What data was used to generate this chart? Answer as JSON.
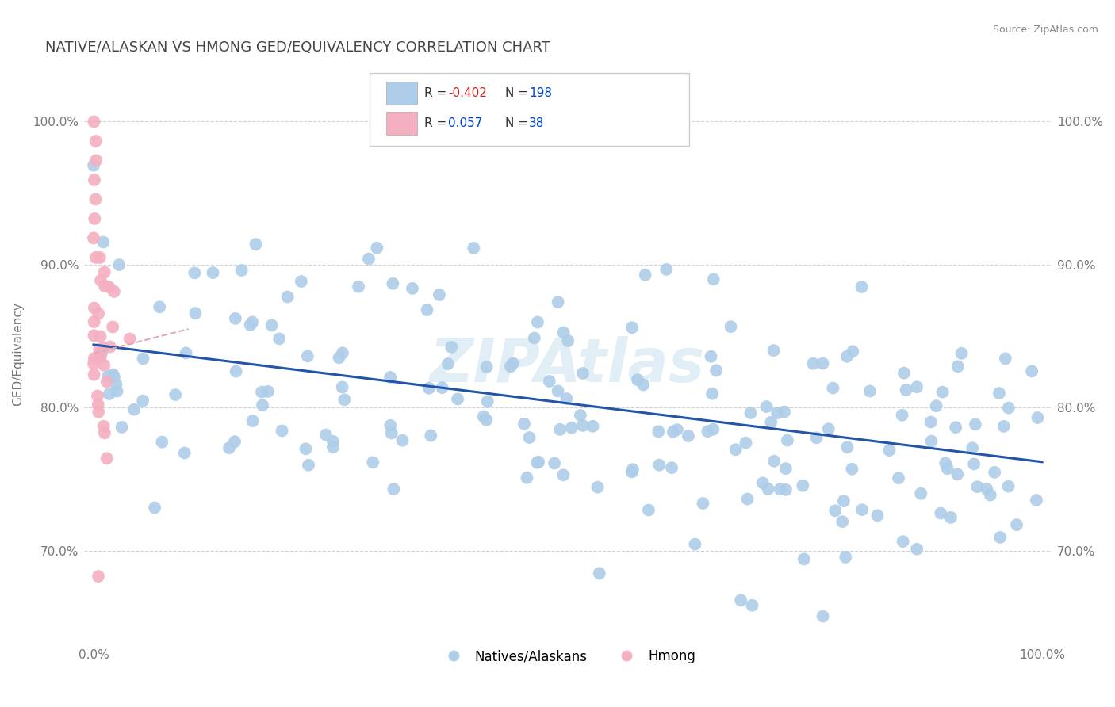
{
  "title": "NATIVE/ALASKAN VS HMONG GED/EQUIVALENCY CORRELATION CHART",
  "source": "Source: ZipAtlas.com",
  "ylabel": "GED/Equivalency",
  "yticks": [
    0.7,
    0.8,
    0.9,
    1.0
  ],
  "ytick_labels": [
    "70.0%",
    "80.0%",
    "90.0%",
    "100.0%"
  ],
  "xlim": [
    -0.01,
    1.01
  ],
  "ylim": [
    0.635,
    1.04
  ],
  "blue_color": "#aecde8",
  "pink_color": "#f4afc0",
  "blue_line_color": "#2255aa",
  "pink_line_color": "#ddaabb",
  "watermark": "ZIPAtlas",
  "background_color": "#ffffff",
  "grid_color": "#cccccc",
  "blue_trend_y_start": 0.844,
  "blue_trend_y_end": 0.762,
  "pink_trend_y_start": 0.838,
  "pink_trend_y_end": 0.855,
  "pink_trend_x_end": 0.1
}
